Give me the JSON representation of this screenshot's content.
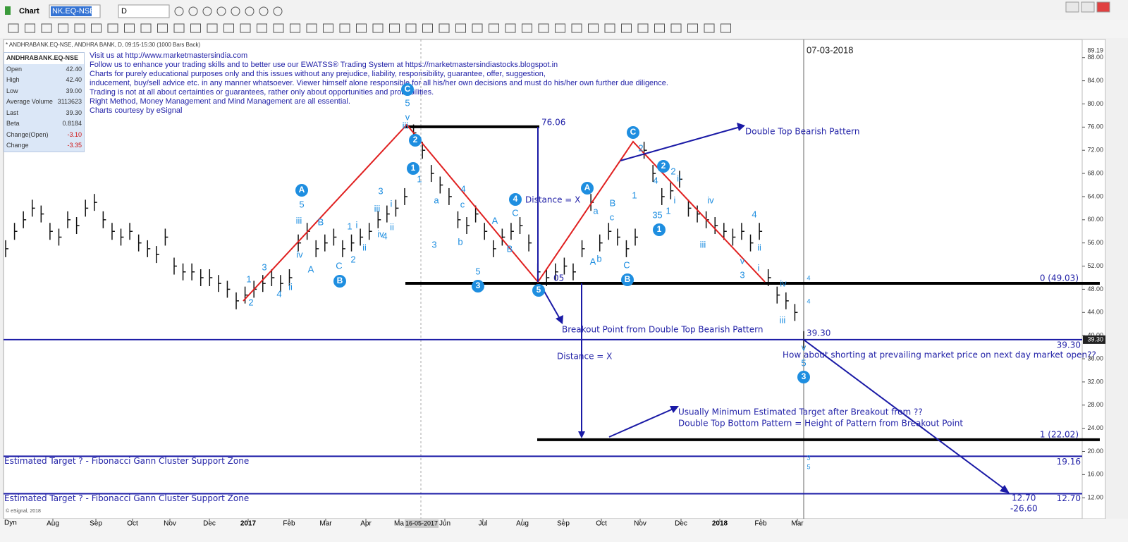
{
  "window": {
    "title": "Chart",
    "symbol": "NK.EQ-NSE",
    "interval": "D"
  },
  "chart_header": "* ANDHRABANK.EQ-NSE, ANDHRA BANK, D, 09:15-15:30 (1000 Bars Back)",
  "quote": {
    "symbol": "ANDHRABANK.EQ-NSE",
    "rows": [
      [
        "Open",
        "42.40"
      ],
      [
        "High",
        "42.40"
      ],
      [
        "Low",
        "39.00"
      ],
      [
        "Average Volume",
        "3113623"
      ],
      [
        "Last",
        "39.30"
      ],
      [
        "Beta",
        "0.8184"
      ],
      [
        "Change(Open)",
        "-3.10"
      ],
      [
        "Change",
        "-3.35"
      ]
    ]
  },
  "notes": [
    "Visit us at http://www.marketmastersindia.com",
    "Follow us to enhance your trading skills and to better use our EWATSS® Trading System at https://marketmastersindiastocks.blogspot.in",
    "Charts for purely educational purposes only and this issues without any prejudice, liability, responsibility, guarantee, offer, suggestion,",
    "inducement, buy/sell advice etc. in any manner whatsoever. Viewer himself alone responsible for all his/her own decisions and must do his/her own further due diligence.",
    "Trading is not at all about certainties or guarantees, rather only about opportunities and probabilities.",
    "Right Method, Money Management and Mind Management are all essential.",
    "Charts courtesy by eSignal"
  ],
  "date_label": "07-03-2018",
  "cursor_date": "16-05-2017",
  "annotations": [
    "Double Top Bearish Pattern",
    "Breakout Point from Double Top Bearish Pattern",
    "Distance = X",
    "Distance = X",
    "How about shorting at prevailing market price on next day market open??",
    "Usually Minimum Estimated Target after Breakout from      ??",
    "Double Top Bottom Pattern = Height of Pattern from Breakout Point",
    "39.30",
    "12.70",
    "-26.60",
    "05"
  ],
  "levels": [
    {
      "value": 76.06,
      "label": "76.06",
      "color": "#000000"
    },
    {
      "value": 49.03,
      "label": "0 (49.03)",
      "color": "#000000"
    },
    {
      "value": 39.3,
      "label": "39.30",
      "color": "#1a1aa6"
    },
    {
      "value": 22.02,
      "label": "1 (22.02)",
      "color": "#000000"
    },
    {
      "value": 19.16,
      "label": "19.16",
      "color": "#1a1aa6",
      "note": "Estimated Target ? - Fibonacci Gann Cluster Support Zone"
    },
    {
      "value": 12.7,
      "label": "12.70",
      "color": "#1a1aa6",
      "note": "Estimated Target ? - Fibonacci Gann Cluster Support Zone"
    }
  ],
  "waves": [
    "1",
    "2",
    "3",
    "4",
    "ii",
    "A",
    "5",
    "iii",
    "iv",
    "A",
    "B",
    "C",
    "B",
    "1",
    "2",
    "i",
    "ii",
    "3",
    "iii",
    "i",
    "ii",
    "iv",
    "4",
    "C",
    "5",
    "v",
    "iii",
    "2",
    "1",
    "1",
    "a",
    "c",
    "4",
    "3",
    "b",
    "5",
    "3",
    "A",
    "C",
    "B",
    "4",
    "5",
    "A",
    "a",
    "B",
    "c",
    "A",
    "b",
    "C",
    "B",
    "C",
    "2",
    "1",
    "4",
    "3",
    "5",
    "1",
    "1",
    "2",
    "2",
    "ii",
    "i",
    "iv",
    "iii",
    "4",
    "ii",
    "v",
    "i",
    "3",
    "iv",
    "iii",
    "v",
    "5",
    "3",
    "4",
    "4",
    "3",
    "5"
  ],
  "chart": {
    "ylim": [
      8.5,
      90.4
    ],
    "last_marker": {
      "value": 89.19,
      "label": "89.19"
    },
    "price_marker": {
      "value": 39.3,
      "label": "39.30"
    },
    "yticks": [
      {
        "value": 88,
        "label": "88.00"
      },
      {
        "value": 84,
        "label": "84.00"
      },
      {
        "value": 80,
        "label": "80.00"
      },
      {
        "value": 76,
        "label": "76.00"
      },
      {
        "value": 72,
        "label": "72.00"
      },
      {
        "value": 68,
        "label": "68.00"
      },
      {
        "value": 64,
        "label": "64.00"
      },
      {
        "value": 60,
        "label": "60.00"
      },
      {
        "value": 56,
        "label": "56.00"
      },
      {
        "value": 52,
        "label": "52.00"
      },
      {
        "value": 48,
        "label": "48.00"
      },
      {
        "value": 44,
        "label": "44.00"
      },
      {
        "value": 40,
        "label": "40.00"
      },
      {
        "value": 36,
        "label": "36.00"
      },
      {
        "value": 32,
        "label": "32.00"
      },
      {
        "value": 28,
        "label": "28.00"
      },
      {
        "value": 24,
        "label": "24.00"
      },
      {
        "value": 20,
        "label": "20.00"
      },
      {
        "value": 16,
        "label": "16.00"
      },
      {
        "value": 12,
        "label": "12.00"
      }
    ],
    "x_labels": [
      "Aug",
      "Sep",
      "Oct",
      "Nov",
      "Dec",
      "2017",
      "Feb",
      "Mar",
      "Apr",
      "Ma",
      "Jun",
      "Jul",
      "Aug",
      "Sep",
      "Oct",
      "Nov",
      "Dec",
      "2018",
      "Feb",
      "Mar"
    ],
    "closes": [
      55,
      58,
      60,
      62,
      61,
      58,
      57,
      60,
      59,
      62,
      63,
      60,
      58,
      57,
      58,
      56,
      55,
      54,
      57,
      52,
      51,
      51,
      50,
      50,
      49,
      48,
      46,
      47,
      48,
      49,
      50,
      49,
      50,
      56,
      58,
      55,
      56,
      57,
      55,
      56,
      57,
      58,
      60,
      61,
      62,
      64,
      75,
      72,
      68,
      66,
      64,
      60,
      59,
      61,
      58,
      55,
      57,
      58,
      59,
      56,
      51,
      50,
      51,
      52,
      51,
      55,
      63,
      56,
      58,
      57,
      55,
      57,
      72,
      68,
      64,
      65,
      67,
      62,
      61,
      60,
      59,
      58,
      57,
      58,
      56,
      58,
      50,
      47,
      46,
      44,
      39.3
    ]
  },
  "footer": {
    "copyright": "© eSignal, 2018",
    "dyn": "Dyn"
  }
}
